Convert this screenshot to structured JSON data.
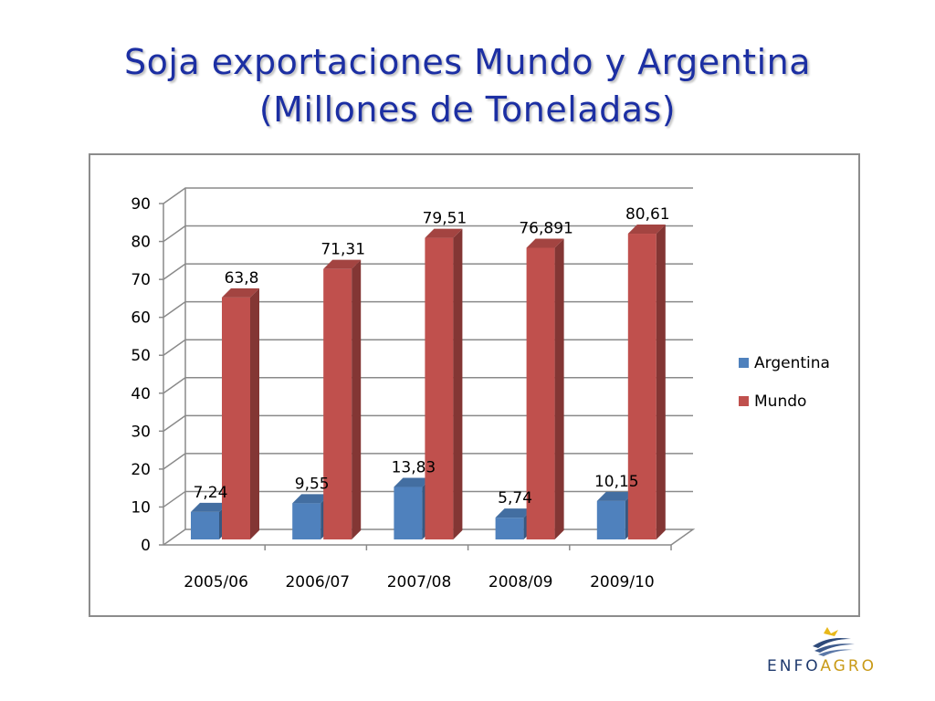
{
  "slide": {
    "title_line1": "Soja exportaciones Mundo y Argentina",
    "title_line2": "(Millones de Toneladas)"
  },
  "logo": {
    "word_part1": "ENFO",
    "word_part2": "AGRO"
  },
  "chart_data": {
    "type": "bar",
    "style": "3d-clustered-column",
    "categories": [
      "2005/06",
      "2006/07",
      "2007/08",
      "2008/09",
      "2009/10"
    ],
    "series": [
      {
        "name": "Argentina",
        "color": "#4f81bd",
        "values": [
          7.24,
          9.55,
          13.83,
          5.74,
          10.15
        ],
        "labels": [
          "7,24",
          "9,55",
          "13,83",
          "5,74",
          "10,15"
        ]
      },
      {
        "name": "Mundo",
        "color": "#c0504d",
        "values": [
          63.8,
          71.31,
          79.51,
          76.891,
          80.61
        ],
        "labels": [
          "63,8",
          "71,31",
          "79,51",
          "76,891",
          "80,61"
        ]
      }
    ],
    "ylim": [
      0,
      90
    ],
    "yticks": [
      0,
      10,
      20,
      30,
      40,
      50,
      60,
      70,
      80,
      90
    ],
    "grid": true,
    "legend_position": "right"
  }
}
